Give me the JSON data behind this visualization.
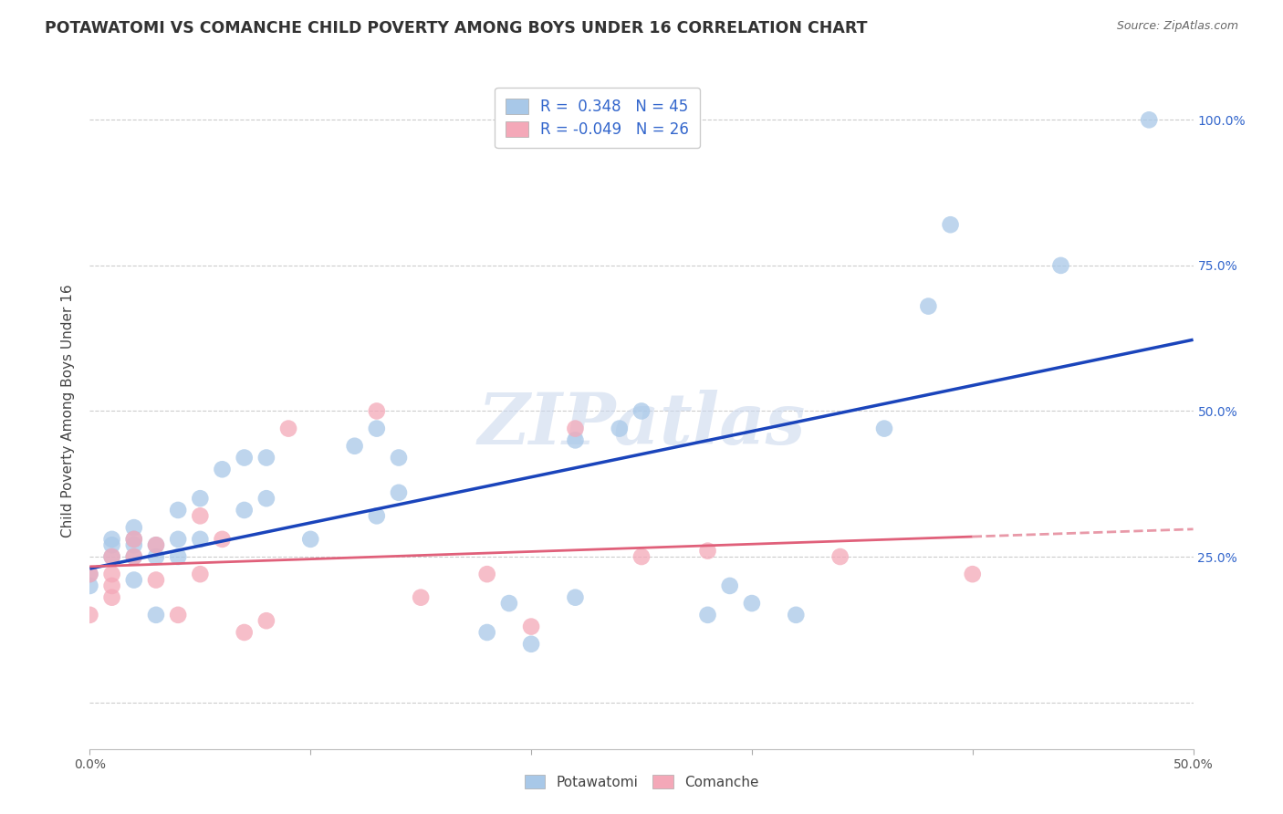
{
  "title": "POTAWATOMI VS COMANCHE CHILD POVERTY AMONG BOYS UNDER 16 CORRELATION CHART",
  "source": "Source: ZipAtlas.com",
  "ylabel": "Child Poverty Among Boys Under 16",
  "xlim": [
    0.0,
    0.5
  ],
  "ylim": [
    -0.08,
    1.08
  ],
  "xticks": [
    0.0,
    0.1,
    0.2,
    0.3,
    0.4,
    0.5
  ],
  "xticklabels": [
    "0.0%",
    "",
    "",
    "",
    "",
    "50.0%"
  ],
  "ytick_positions": [
    0.0,
    0.25,
    0.5,
    0.75,
    1.0
  ],
  "yticklabels_right": [
    "",
    "25.0%",
    "50.0%",
    "75.0%",
    "100.0%"
  ],
  "r_potawatomi": 0.348,
  "n_potawatomi": 45,
  "r_comanche": -0.049,
  "n_comanche": 26,
  "potawatomi_color": "#a8c8e8",
  "comanche_color": "#f4a8b8",
  "line_blue": "#1a44bb",
  "line_pink": "#e0607a",
  "line_pink_dashed": "#e899a8",
  "watermark": "ZIPatlas",
  "potawatomi_x": [
    0.0,
    0.0,
    0.01,
    0.01,
    0.01,
    0.02,
    0.02,
    0.02,
    0.02,
    0.02,
    0.03,
    0.03,
    0.03,
    0.04,
    0.04,
    0.04,
    0.05,
    0.05,
    0.06,
    0.07,
    0.07,
    0.08,
    0.08,
    0.1,
    0.12,
    0.13,
    0.13,
    0.14,
    0.14,
    0.18,
    0.19,
    0.2,
    0.22,
    0.22,
    0.24,
    0.25,
    0.28,
    0.29,
    0.3,
    0.32,
    0.36,
    0.38,
    0.39,
    0.44,
    0.48
  ],
  "potawatomi_y": [
    0.2,
    0.22,
    0.25,
    0.27,
    0.28,
    0.21,
    0.25,
    0.27,
    0.28,
    0.3,
    0.15,
    0.25,
    0.27,
    0.25,
    0.28,
    0.33,
    0.28,
    0.35,
    0.4,
    0.33,
    0.42,
    0.35,
    0.42,
    0.28,
    0.44,
    0.32,
    0.47,
    0.36,
    0.42,
    0.12,
    0.17,
    0.1,
    0.18,
    0.45,
    0.47,
    0.5,
    0.15,
    0.2,
    0.17,
    0.15,
    0.47,
    0.68,
    0.82,
    0.75,
    1.0
  ],
  "comanche_x": [
    0.0,
    0.0,
    0.01,
    0.01,
    0.01,
    0.01,
    0.02,
    0.02,
    0.03,
    0.03,
    0.04,
    0.05,
    0.05,
    0.06,
    0.07,
    0.08,
    0.09,
    0.13,
    0.15,
    0.18,
    0.2,
    0.22,
    0.25,
    0.28,
    0.34,
    0.4
  ],
  "comanche_y": [
    0.15,
    0.22,
    0.18,
    0.2,
    0.22,
    0.25,
    0.25,
    0.28,
    0.21,
    0.27,
    0.15,
    0.22,
    0.32,
    0.28,
    0.12,
    0.14,
    0.47,
    0.5,
    0.18,
    0.22,
    0.13,
    0.47,
    0.25,
    0.26,
    0.25,
    0.22
  ]
}
